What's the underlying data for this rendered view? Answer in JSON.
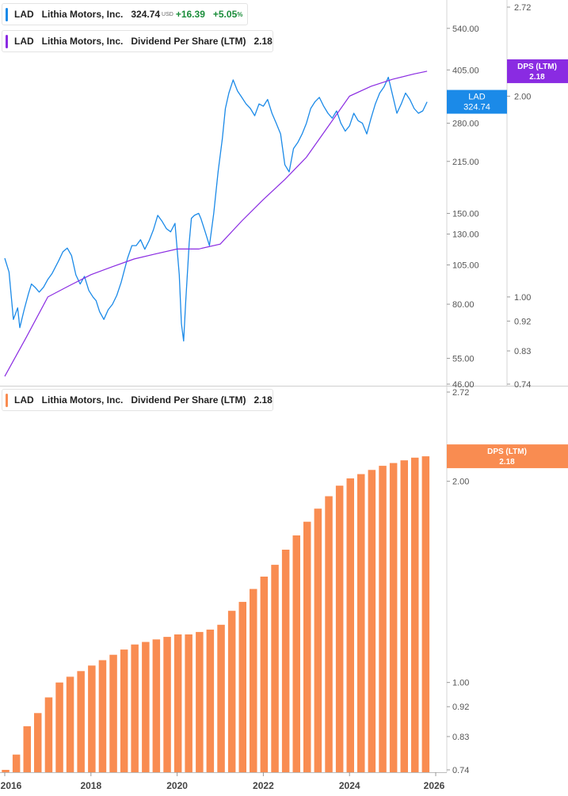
{
  "legends": {
    "price": {
      "ticker": "LAD",
      "name": "Lithia Motors, Inc.",
      "price": "324.74",
      "currency": "USD",
      "change": "+16.39",
      "change_pct": "+5.05",
      "pct_sign": "%",
      "color": "#1b8ae8"
    },
    "dps_top": {
      "ticker": "LAD",
      "name": "Lithia Motors, Inc.",
      "metric": "Dividend Per Share (LTM)",
      "value": "2.18",
      "color": "#8a2be2"
    },
    "dps_bottom": {
      "ticker": "LAD",
      "name": "Lithia Motors, Inc.",
      "metric": "Dividend Per Share (LTM)",
      "value": "2.18",
      "color": "#f98c51"
    }
  },
  "chart_data": [
    {
      "type": "line",
      "scale": "log",
      "x_range": [
        2016.0,
        2026.3
      ],
      "series": [
        {
          "name": "LAD",
          "color": "#1b8ae8",
          "x": [
            2016.0,
            2016.1,
            2016.2,
            2016.3,
            2016.35,
            2016.45,
            2016.55,
            2016.62,
            2016.7,
            2016.8,
            2016.9,
            2017.0,
            2017.1,
            2017.25,
            2017.35,
            2017.45,
            2017.55,
            2017.65,
            2017.75,
            2017.85,
            2017.95,
            2018.05,
            2018.12,
            2018.2,
            2018.3,
            2018.4,
            2018.5,
            2018.6,
            2018.7,
            2018.8,
            2018.85,
            2018.95,
            2019.05,
            2019.15,
            2019.25,
            2019.35,
            2019.45,
            2019.55,
            2019.65,
            2019.75,
            2019.85,
            2019.95,
            2020.05,
            2020.1,
            2020.15,
            2020.2,
            2020.25,
            2020.28,
            2020.33,
            2020.4,
            2020.5,
            2020.55,
            2020.65,
            2020.75,
            2020.85,
            2020.95,
            2021.05,
            2021.12,
            2021.2,
            2021.3,
            2021.4,
            2021.5,
            2021.6,
            2021.7,
            2021.8,
            2021.9,
            2022.0,
            2022.1,
            2022.2,
            2022.3,
            2022.4,
            2022.5,
            2022.6,
            2022.7,
            2022.8,
            2022.9,
            2023.0,
            2023.1,
            2023.2,
            2023.3,
            2023.4,
            2023.5,
            2023.6,
            2023.7,
            2023.8,
            2023.9,
            2024.0,
            2024.1,
            2024.2,
            2024.3,
            2024.4,
            2024.5,
            2024.6,
            2024.7,
            2024.8,
            2024.9,
            2025.0,
            2025.1,
            2025.2,
            2025.3,
            2025.4,
            2025.5,
            2025.6,
            2025.7,
            2025.8
          ],
          "y": [
            110,
            100,
            72,
            78,
            68,
            77,
            86,
            92,
            90,
            87,
            90,
            95,
            99,
            108,
            115,
            118,
            112,
            98,
            92,
            97,
            88,
            84,
            82,
            76,
            72,
            77,
            80,
            85,
            93,
            104,
            110,
            120,
            120,
            125,
            117,
            124,
            134,
            148,
            142,
            135,
            132,
            140,
            98,
            70,
            62,
            82,
            105,
            122,
            145,
            148,
            150,
            145,
            132,
            120,
            150,
            200,
            252,
            310,
            345,
            378,
            350,
            335,
            320,
            310,
            295,
            320,
            315,
            330,
            300,
            280,
            260,
            210,
            200,
            235,
            245,
            260,
            280,
            310,
            325,
            335,
            315,
            300,
            290,
            305,
            280,
            265,
            275,
            300,
            285,
            280,
            260,
            290,
            320,
            345,
            360,
            385,
            340,
            300,
            320,
            345,
            330,
            310,
            300,
            305,
            324.74
          ]
        },
        {
          "name": "DPS (LTM)",
          "color": "#8a2be2",
          "x": [
            2016.0,
            2016.5,
            2017.0,
            2017.5,
            2018.0,
            2018.5,
            2019.0,
            2019.5,
            2020.0,
            2020.5,
            2021.0,
            2021.5,
            2022.0,
            2022.5,
            2023.0,
            2023.5,
            2024.0,
            2024.5,
            2025.0,
            2025.5,
            2025.8
          ],
          "y": [
            0.76,
            0.87,
            1.0,
            1.04,
            1.08,
            1.11,
            1.14,
            1.16,
            1.18,
            1.18,
            1.2,
            1.3,
            1.4,
            1.5,
            1.62,
            1.8,
            2.0,
            2.07,
            2.12,
            2.16,
            2.18
          ]
        }
      ],
      "y_axes": {
        "left_ticks": [
          46.0,
          55.0,
          80.0,
          105.0,
          130.0,
          150.0,
          215.0,
          280.0,
          405.0,
          540.0
        ],
        "left_ticks_labels": [
          "46.00",
          "55.00",
          "80.00",
          "105.00",
          "130.00",
          "150.00",
          "215.00",
          "280.00",
          "405.00",
          "540.00"
        ],
        "left_range": [
          46,
          650
        ],
        "right_ticks": [
          0.74,
          0.83,
          0.92,
          1.0,
          2.0,
          2.72
        ],
        "right_ticks_labels": [
          "0.74",
          "0.83",
          "0.92",
          "1.00",
          "2.00",
          "2.72"
        ],
        "right_range": [
          0.74,
          2.72
        ]
      },
      "badges": [
        {
          "label": "LAD",
          "value": "324.74",
          "color": "#1b8ae8"
        },
        {
          "label": "DPS (LTM)",
          "value": "2.18",
          "color": "#8a2be2"
        }
      ]
    },
    {
      "type": "bar",
      "scale": "log",
      "series": [
        {
          "name": "DPS (LTM)",
          "color": "#f98c51",
          "x": [
            2016.0,
            2016.25,
            2016.5,
            2016.75,
            2017.0,
            2017.25,
            2017.5,
            2017.75,
            2018.0,
            2018.25,
            2018.5,
            2018.75,
            2019.0,
            2019.25,
            2019.5,
            2019.75,
            2020.0,
            2020.25,
            2020.5,
            2020.75,
            2021.0,
            2021.25,
            2021.5,
            2021.75,
            2022.0,
            2022.25,
            2022.5,
            2022.75,
            2023.0,
            2023.25,
            2023.5,
            2023.75,
            2024.0,
            2024.25,
            2024.5,
            2024.75,
            2025.0,
            2025.25,
            2025.5,
            2025.75
          ],
          "values": [
            0.74,
            0.78,
            0.86,
            0.9,
            0.95,
            1.0,
            1.02,
            1.04,
            1.06,
            1.08,
            1.1,
            1.12,
            1.14,
            1.15,
            1.16,
            1.17,
            1.18,
            1.18,
            1.19,
            1.2,
            1.22,
            1.28,
            1.32,
            1.38,
            1.44,
            1.5,
            1.58,
            1.66,
            1.74,
            1.82,
            1.9,
            1.97,
            2.02,
            2.05,
            2.08,
            2.11,
            2.13,
            2.15,
            2.17,
            2.18
          ]
        }
      ],
      "y_axis": {
        "ticks": [
          0.74,
          0.83,
          0.92,
          1.0,
          2.0,
          2.72
        ],
        "ticks_labels": [
          "0.74",
          "0.83",
          "0.92",
          "1.00",
          "2.00",
          "2.72"
        ],
        "range": [
          0.74,
          2.72
        ]
      },
      "x_ticks": [
        "2016",
        "2018",
        "2020",
        "2022",
        "2024",
        "2026"
      ],
      "x_tick_values": [
        2016,
        2018,
        2020,
        2022,
        2024,
        2026
      ],
      "badge": {
        "label": "DPS (LTM)",
        "value": "2.18",
        "color": "#f98c51"
      }
    }
  ]
}
